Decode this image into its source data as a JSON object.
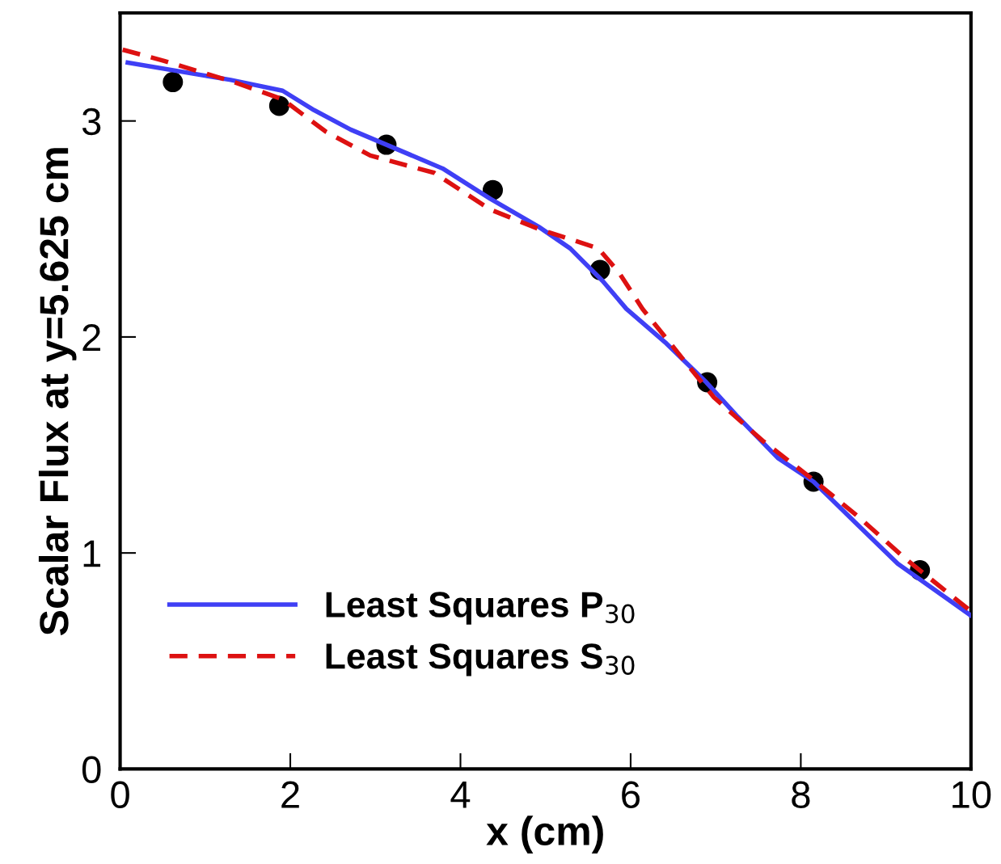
{
  "chart_data": {
    "type": "line",
    "xlabel": "x (cm)",
    "ylabel": "Scalar Flux at y=5.625 cm",
    "xlim": [
      0,
      10
    ],
    "xticks": [
      0,
      2,
      4,
      6,
      8,
      10
    ],
    "ylim": [
      0,
      3.5
    ],
    "yticks": [
      0,
      1,
      2,
      3
    ],
    "grid": false,
    "legend": "bottom left",
    "series": [
      {
        "type": "scatter",
        "marker": "circle",
        "color": "#000000",
        "x": [
          0.62,
          1.87,
          3.13,
          4.38,
          5.64,
          6.9,
          8.15,
          9.4
        ],
        "values": [
          3.18,
          3.07,
          2.89,
          2.68,
          2.31,
          1.79,
          1.33,
          0.92
        ]
      },
      {
        "name": "Least Squares P$_{30}$",
        "color": "#3f3ff5",
        "line_style": "solid",
        "x": [
          0.09,
          1.3,
          1.91,
          2.28,
          2.71,
          3.79,
          4.35,
          4.92,
          5.29,
          5.67,
          5.95,
          6.42,
          6.89,
          7.26,
          7.73,
          8.15,
          8.67,
          9.14,
          10
        ],
        "values": [
          3.27,
          3.19,
          3.14,
          3.05,
          2.96,
          2.78,
          2.64,
          2.51,
          2.41,
          2.26,
          2.13,
          1.97,
          1.79,
          1.63,
          1.44,
          1.33,
          1.13,
          0.95,
          0.71
        ]
      },
      {
        "name": "Least Squares S$_{30}$",
        "color": "#dd1111",
        "line_style": "dashed",
        "x": [
          0.03,
          0.5,
          1.34,
          1.91,
          2.42,
          2.94,
          3.69,
          4.35,
          4.92,
          5.62,
          5.86,
          6.14,
          6.61,
          6.98,
          7.55,
          8.11,
          8.67,
          9.24,
          10
        ],
        "values": [
          3.33,
          3.28,
          3.18,
          3.1,
          2.95,
          2.84,
          2.76,
          2.59,
          2.5,
          2.41,
          2.3,
          2.13,
          1.9,
          1.72,
          1.52,
          1.35,
          1.17,
          0.97,
          0.73
        ]
      }
    ]
  }
}
